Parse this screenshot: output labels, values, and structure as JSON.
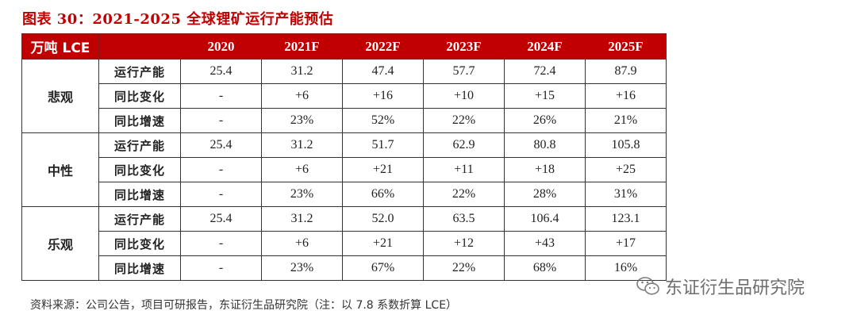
{
  "title": "图表 30：2021-2025 全球锂矿运行产能预估",
  "header": {
    "unit": "万吨 LCE",
    "years": [
      "2020",
      "2021F",
      "2022F",
      "2023F",
      "2024F",
      "2025F"
    ]
  },
  "scenarios": [
    {
      "name": "悲观",
      "rows": [
        {
          "metric": "运行产能",
          "values": [
            "25.4",
            "31.2",
            "47.4",
            "57.7",
            "72.4",
            "87.9"
          ]
        },
        {
          "metric": "同比变化",
          "values": [
            "-",
            "+6",
            "+16",
            "+10",
            "+15",
            "+16"
          ]
        },
        {
          "metric": "同比增速",
          "values": [
            "-",
            "23%",
            "52%",
            "22%",
            "26%",
            "21%"
          ]
        }
      ]
    },
    {
      "name": "中性",
      "rows": [
        {
          "metric": "运行产能",
          "values": [
            "25.4",
            "31.2",
            "51.7",
            "62.9",
            "80.8",
            "105.8"
          ]
        },
        {
          "metric": "同比变化",
          "values": [
            "-",
            "+6",
            "+21",
            "+11",
            "+18",
            "+25"
          ]
        },
        {
          "metric": "同比增速",
          "values": [
            "-",
            "23%",
            "66%",
            "22%",
            "28%",
            "31%"
          ]
        }
      ]
    },
    {
      "name": "乐观",
      "rows": [
        {
          "metric": "运行产能",
          "values": [
            "25.4",
            "31.2",
            "52.0",
            "63.5",
            "106.4",
            "123.1"
          ]
        },
        {
          "metric": "同比变化",
          "values": [
            "-",
            "+6",
            "+21",
            "+12",
            "+43",
            "+17"
          ]
        },
        {
          "metric": "同比增速",
          "values": [
            "-",
            "23%",
            "67%",
            "22%",
            "68%",
            "16%"
          ]
        }
      ]
    }
  ],
  "source": "资料来源：公司公告，项目可研报告，东证衍生品研究院（注：以 7.8 系数折算 LCE）",
  "watermark": "东证衍生品研究院",
  "colors": {
    "header_bg": "#c00000",
    "title": "#c00000"
  },
  "icons": {
    "watermark": "wechat-icon"
  }
}
